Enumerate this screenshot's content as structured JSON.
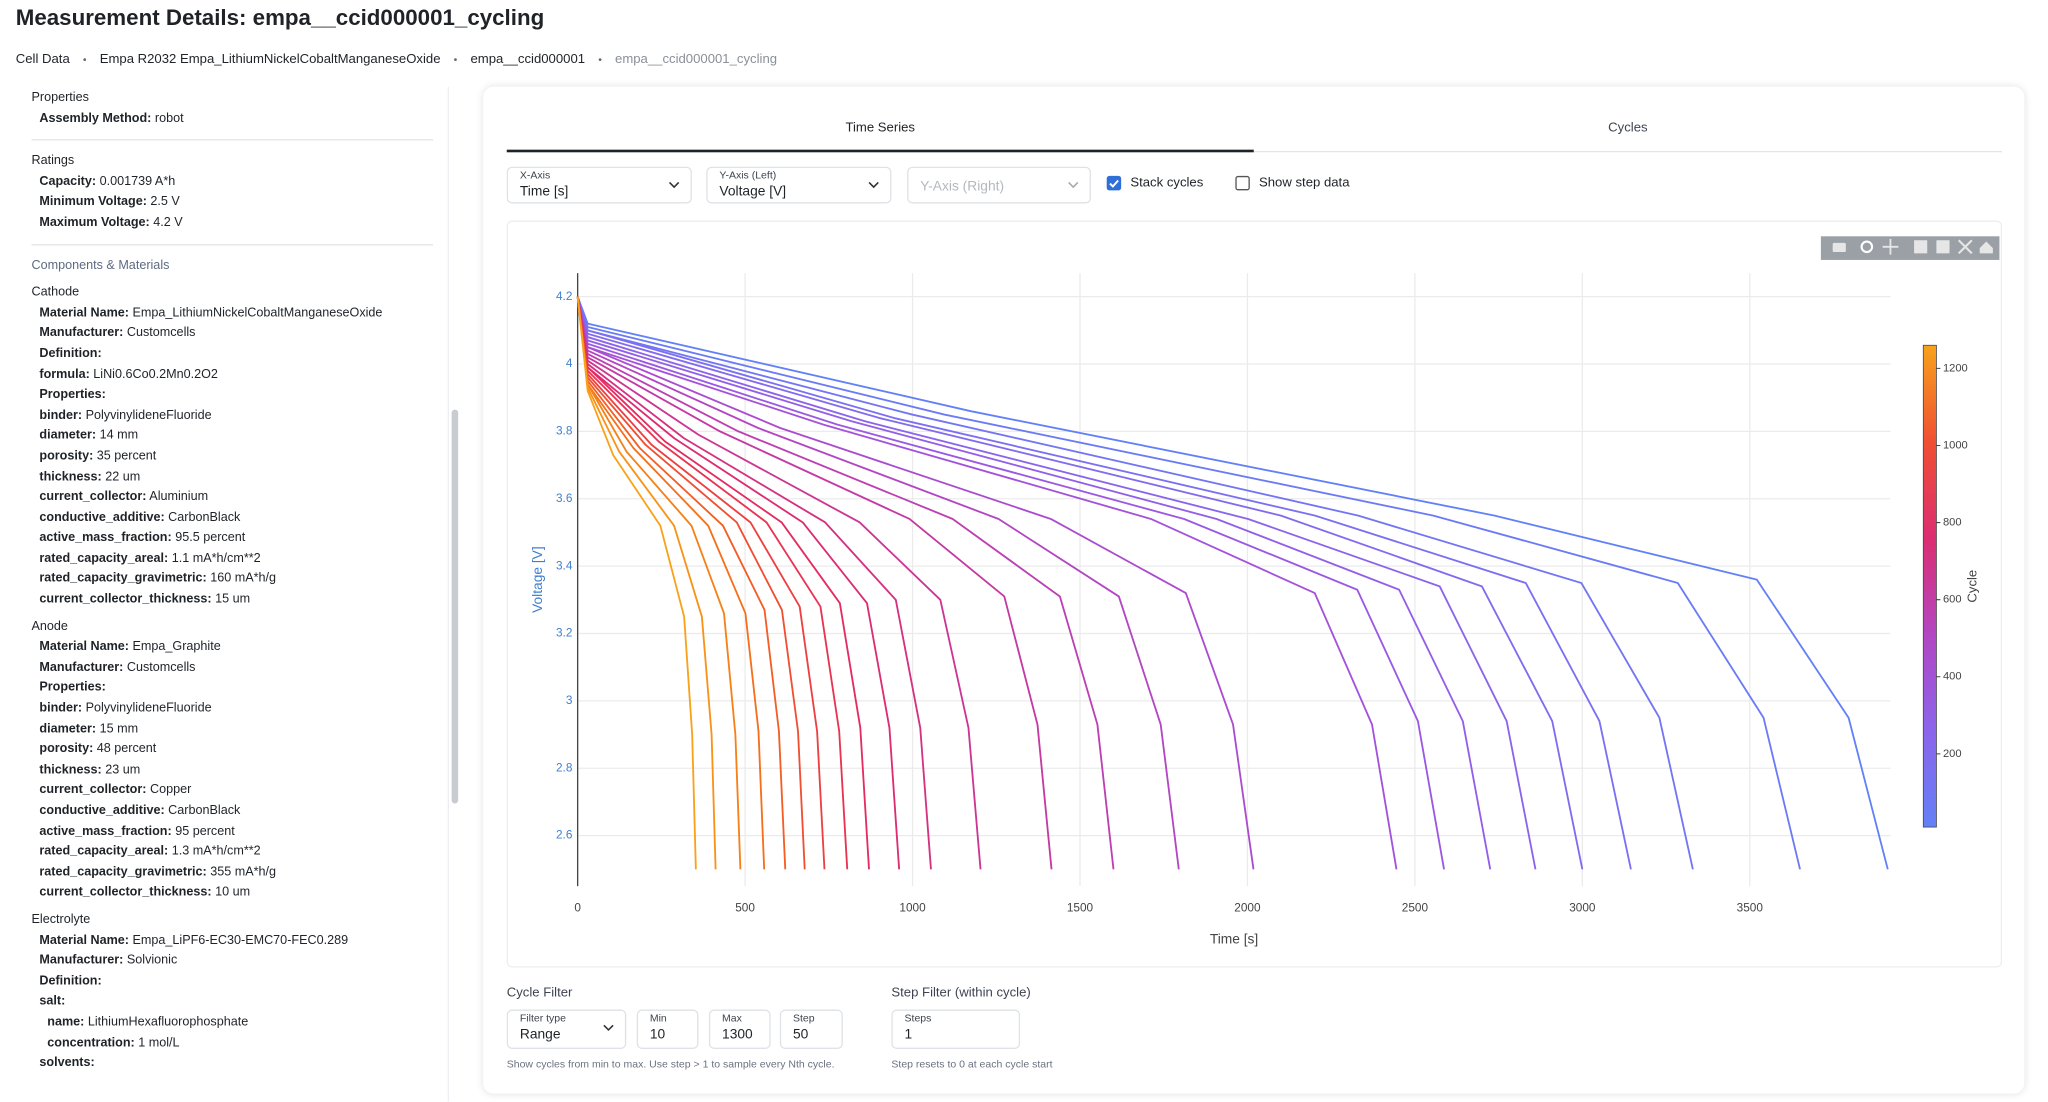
{
  "header": {
    "title": "Measurement Details: empa__ccid000001_cycling",
    "breadcrumbs": [
      "Cell Data",
      "Empa R2032 Empa_LithiumNickelCobaltManganeseOxide",
      "empa__ccid000001",
      "empa__ccid000001_cycling"
    ]
  },
  "sidebar": {
    "sections": [
      {
        "title": "Properties",
        "rows": [
          [
            "Assembly Method:",
            "robot"
          ]
        ]
      },
      {
        "title": "Ratings",
        "rows": [
          [
            "Capacity:",
            "0.001739 A*h"
          ],
          [
            "Minimum Voltage:",
            "2.5 V"
          ],
          [
            "Maximum Voltage:",
            "4.2 V"
          ]
        ]
      }
    ],
    "components_title": "Components & Materials",
    "materials": [
      {
        "title": "Cathode",
        "rows": [
          [
            "Material Name:",
            "Empa_LithiumNickelCobaltManganeseOxide"
          ],
          [
            "Manufacturer:",
            "Customcells"
          ],
          [
            "Definition:"
          ],
          [
            "formula:",
            "LiNi0.6Co0.2Mn0.2O2"
          ],
          [
            "Properties:"
          ],
          [
            "binder:",
            "PolyvinylideneFluoride"
          ],
          [
            "diameter:",
            "14 mm"
          ],
          [
            "porosity:",
            "35 percent"
          ],
          [
            "thickness:",
            "22 um"
          ],
          [
            "current_collector:",
            "Aluminium"
          ],
          [
            "conductive_additive:",
            "CarbonBlack"
          ],
          [
            "active_mass_fraction:",
            "95.5 percent"
          ],
          [
            "rated_capacity_areal:",
            "1.1 mA*h/cm**2"
          ],
          [
            "rated_capacity_gravimetric:",
            "160 mA*h/g"
          ],
          [
            "current_collector_thickness:",
            "15 um"
          ]
        ]
      },
      {
        "title": "Anode",
        "rows": [
          [
            "Material Name:",
            "Empa_Graphite"
          ],
          [
            "Manufacturer:",
            "Customcells"
          ],
          [
            "Properties:"
          ],
          [
            "binder:",
            "PolyvinylideneFluoride"
          ],
          [
            "diameter:",
            "15 mm"
          ],
          [
            "porosity:",
            "48 percent"
          ],
          [
            "thickness:",
            "23 um"
          ],
          [
            "current_collector:",
            "Copper"
          ],
          [
            "conductive_additive:",
            "CarbonBlack"
          ],
          [
            "active_mass_fraction:",
            "95 percent"
          ],
          [
            "rated_capacity_areal:",
            "1.3 mA*h/cm**2"
          ],
          [
            "rated_capacity_gravimetric:",
            "355 mA*h/g"
          ],
          [
            "current_collector_thickness:",
            "10 um"
          ]
        ]
      },
      {
        "title": "Electrolyte",
        "rows": [
          [
            "Material Name:",
            "Empa_LiPF6-EC30-EMC70-FEC0.289"
          ],
          [
            "Manufacturer:",
            "Solvionic"
          ],
          [
            "Definition:"
          ],
          {
            "label": "salt:",
            "rows": [
              [
                "name:",
                "LithiumHexafluorophosphate"
              ],
              [
                "concentration:",
                "1 mol/L"
              ]
            ]
          },
          [
            "solvents:"
          ]
        ]
      }
    ]
  },
  "tabs": [
    "Time Series",
    "Cycles"
  ],
  "controls": {
    "x_axis": {
      "label": "X-Axis",
      "value": "Time [s]"
    },
    "y_axis_left": {
      "label": "Y-Axis (Left)",
      "value": "Voltage [V]"
    },
    "y_axis_right": {
      "placeholder": "Y-Axis (Right)"
    },
    "stack_cycles": {
      "label": "Stack cycles",
      "checked": true
    },
    "show_step_data": {
      "label": "Show step data",
      "checked": false
    }
  },
  "chart_data": {
    "type": "line",
    "x_label": "Time [s]",
    "y_label": "Voltage [V]",
    "xlim": [
      0,
      3920
    ],
    "ylim": [
      2.45,
      4.27
    ],
    "xticks": [
      0,
      500,
      1000,
      1500,
      2000,
      2500,
      3000,
      3500
    ],
    "yticks": [
      2.6,
      2.8,
      3,
      3.2,
      3.4,
      3.6,
      3.8,
      4,
      4.2
    ],
    "grid": true,
    "series": [
      {
        "color": "#6381f6",
        "x": [
          0,
          30,
          1174,
          2738,
          3521,
          3795,
          3912
        ],
        "values": [
          4.2,
          4.12,
          3.86,
          3.55,
          3.36,
          2.95,
          2.5
        ]
      },
      {
        "color": "#6b7bf5",
        "x": [
          0,
          30,
          1095,
          2555,
          3285,
          3541,
          3650
        ],
        "values": [
          4.2,
          4.11,
          3.85,
          3.55,
          3.35,
          2.95,
          2.5
        ]
      },
      {
        "color": "#7376f3",
        "x": [
          0,
          30,
          999,
          2331,
          2997,
          3230,
          3330
        ],
        "values": [
          4.2,
          4.1,
          3.85,
          3.55,
          3.35,
          2.95,
          2.5
        ]
      },
      {
        "color": "#7b70f1",
        "x": [
          0,
          30,
          944,
          2202,
          2831,
          3051,
          3145
        ],
        "values": [
          4.2,
          4.1,
          3.84,
          3.55,
          3.35,
          2.94,
          2.5
        ]
      },
      {
        "color": "#836aef",
        "x": [
          0,
          30,
          900,
          2100,
          2700,
          2910,
          3000
        ],
        "values": [
          4.2,
          4.09,
          3.84,
          3.55,
          3.34,
          2.94,
          2.5
        ]
      },
      {
        "color": "#8b64ec",
        "x": [
          0,
          30,
          858,
          2002,
          2574,
          2774,
          2860
        ],
        "values": [
          4.2,
          4.08,
          3.83,
          3.54,
          3.34,
          2.94,
          2.5
        ]
      },
      {
        "color": "#935ee8",
        "x": [
          0,
          30,
          818,
          1908,
          2453,
          2643,
          2725
        ],
        "values": [
          4.2,
          4.07,
          3.83,
          3.54,
          3.33,
          2.94,
          2.5
        ]
      },
      {
        "color": "#9b58e3",
        "x": [
          0,
          30,
          776,
          1811,
          2328,
          2509,
          2587
        ],
        "values": [
          4.2,
          4.06,
          3.82,
          3.54,
          3.33,
          2.94,
          2.5
        ]
      },
      {
        "color": "#a352dc",
        "x": [
          0,
          30,
          734,
          1712,
          2201,
          2372,
          2445
        ],
        "values": [
          4.2,
          4.05,
          3.82,
          3.54,
          3.32,
          2.93,
          2.5
        ]
      },
      {
        "color": "#ab4cd0",
        "x": [
          0,
          30,
          605,
          1413,
          1816,
          1957,
          2018
        ],
        "values": [
          4.2,
          4.05,
          3.81,
          3.54,
          3.32,
          2.93,
          2.5
        ]
      },
      {
        "color": "#b346c2",
        "x": [
          0,
          30,
          539,
          1257,
          1616,
          1741,
          1795
        ],
        "values": [
          4.2,
          4.04,
          3.81,
          3.54,
          3.31,
          2.93,
          2.5
        ]
      },
      {
        "color": "#bc40b2",
        "x": [
          0,
          30,
          480,
          1120,
          1440,
          1552,
          1600
        ],
        "values": [
          4.2,
          4.03,
          3.8,
          3.54,
          3.31,
          2.93,
          2.5
        ]
      },
      {
        "color": "#c43aa2",
        "x": [
          0,
          30,
          425,
          991,
          1274,
          1373,
          1415
        ],
        "values": [
          4.2,
          4.02,
          3.8,
          3.54,
          3.31,
          2.93,
          2.5
        ]
      },
      {
        "color": "#cc3592",
        "x": [
          0,
          30,
          361,
          842,
          1083,
          1167,
          1203
        ],
        "values": [
          4.2,
          4.01,
          3.79,
          3.53,
          3.3,
          2.92,
          2.5
        ]
      },
      {
        "color": "#d43182",
        "x": [
          0,
          30,
          317,
          739,
          950,
          1023,
          1055
        ],
        "values": [
          4.2,
          4.0,
          3.78,
          3.53,
          3.3,
          2.92,
          2.5
        ]
      },
      {
        "color": "#dc2d72",
        "x": [
          0,
          30,
          288,
          672,
          864,
          931,
          960
        ],
        "values": [
          4.2,
          3.99,
          3.78,
          3.53,
          3.29,
          2.92,
          2.5
        ]
      },
      {
        "color": "#e32c62",
        "x": [
          0,
          30,
          261,
          609,
          783,
          844,
          870
        ],
        "values": [
          4.2,
          3.99,
          3.77,
          3.53,
          3.29,
          2.92,
          2.5
        ]
      },
      {
        "color": "#e83452",
        "x": [
          0,
          30,
          242,
          564,
          725,
          781,
          805
        ],
        "values": [
          4.2,
          3.98,
          3.77,
          3.53,
          3.28,
          2.91,
          2.5
        ]
      },
      {
        "color": "#ec4042",
        "x": [
          0,
          30,
          221,
          516,
          663,
          715,
          737
        ],
        "values": [
          4.2,
          3.97,
          3.76,
          3.53,
          3.28,
          2.91,
          2.5
        ]
      },
      {
        "color": "#f04f32",
        "x": [
          0,
          30,
          203,
          475,
          610,
          658,
          678
        ],
        "values": [
          4.2,
          3.96,
          3.76,
          3.53,
          3.27,
          2.91,
          2.5
        ]
      },
      {
        "color": "#f35e25",
        "x": [
          0,
          30,
          186,
          434,
          558,
          601,
          620
        ],
        "values": [
          4.2,
          3.95,
          3.75,
          3.52,
          3.27,
          2.91,
          2.5
        ]
      },
      {
        "color": "#f56f1c",
        "x": [
          0,
          30,
          167,
          390,
          501,
          540,
          557
        ],
        "values": [
          4.2,
          3.94,
          3.75,
          3.52,
          3.26,
          2.91,
          2.5
        ]
      },
      {
        "color": "#f68118",
        "x": [
          0,
          30,
          146,
          340,
          437,
          471,
          486
        ],
        "values": [
          4.2,
          3.94,
          3.74,
          3.52,
          3.26,
          2.9,
          2.5
        ]
      },
      {
        "color": "#f79318",
        "x": [
          0,
          30,
          124,
          288,
          371,
          400,
          412
        ],
        "values": [
          4.2,
          3.93,
          3.74,
          3.52,
          3.25,
          2.9,
          2.5
        ]
      },
      {
        "color": "#f8a21c",
        "x": [
          0,
          30,
          106,
          247,
          318,
          342,
          353
        ],
        "values": [
          4.2,
          3.92,
          3.73,
          3.52,
          3.25,
          2.9,
          2.5
        ]
      }
    ],
    "colorbar": {
      "title": "Cycle",
      "lim": [
        10,
        1260
      ],
      "ticks": [
        200,
        400,
        600,
        800,
        1000,
        1200
      ],
      "colors": [
        "#6381f6",
        "#8b64ec",
        "#b346c2",
        "#dc2d72",
        "#f04f32",
        "#f8a21c"
      ]
    }
  },
  "cycle_filter": {
    "title": "Cycle Filter",
    "filter_type": {
      "label": "Filter type",
      "value": "Range"
    },
    "min": {
      "label": "Min",
      "value": 10
    },
    "max": {
      "label": "Max",
      "value": 1300
    },
    "step": {
      "label": "Step",
      "value": 50
    },
    "help": "Show cycles from min to max. Use step > 1 to sample every Nth cycle."
  },
  "step_filter": {
    "title": "Step Filter (within cycle)",
    "steps": {
      "label": "Steps",
      "value": 1
    },
    "help": "Step resets to 0 at each cycle start"
  }
}
